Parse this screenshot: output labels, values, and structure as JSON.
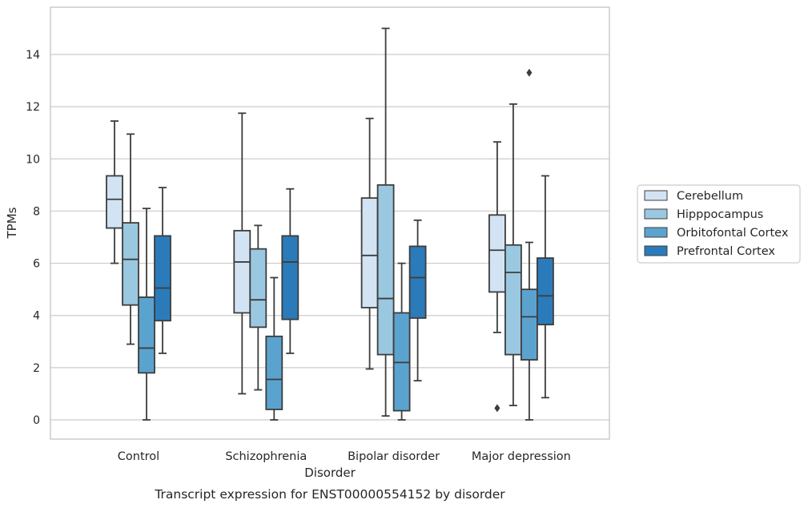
{
  "chart_data": {
    "type": "box",
    "title": "Transcript expression for ENST00000554152 by disorder",
    "xlabel": "Disorder",
    "ylabel": "TPMs",
    "categories": [
      "Control",
      "Schizophrenia",
      "Bipolar disorder",
      "Major depression"
    ],
    "ylim": [
      -0.7,
      15.5
    ],
    "yticks": [
      0,
      2,
      4,
      6,
      8,
      10,
      12,
      14
    ],
    "ytick_labels": [
      "0",
      "2",
      "4",
      "6",
      "8",
      "10",
      "12",
      "14"
    ],
    "grid": "horizontal",
    "legend_position": "right",
    "series": [
      {
        "name": "Cerebellum",
        "color": "#d2e3f3",
        "boxes": [
          {
            "whisker_low": 6.0,
            "q1": 7.35,
            "median": 8.45,
            "q3": 9.35,
            "whisker_high": 11.45,
            "outliers": []
          },
          {
            "whisker_low": 1.0,
            "q1": 4.1,
            "median": 6.05,
            "q3": 7.25,
            "whisker_high": 11.75,
            "outliers": []
          },
          {
            "whisker_low": 1.95,
            "q1": 4.3,
            "median": 6.3,
            "q3": 8.5,
            "whisker_high": 11.55,
            "outliers": []
          },
          {
            "whisker_low": 3.35,
            "q1": 4.9,
            "median": 6.5,
            "q3": 7.85,
            "whisker_high": 10.65,
            "outliers": [
              0.45
            ]
          }
        ]
      },
      {
        "name": "Hipppocampus",
        "color": "#9ac8e0",
        "boxes": [
          {
            "whisker_low": 2.9,
            "q1": 4.4,
            "median": 6.15,
            "q3": 7.55,
            "whisker_high": 10.95,
            "outliers": []
          },
          {
            "whisker_low": 1.15,
            "q1": 3.55,
            "median": 4.6,
            "q3": 6.55,
            "whisker_high": 7.45,
            "outliers": []
          },
          {
            "whisker_low": 0.15,
            "q1": 2.5,
            "median": 4.65,
            "q3": 9.0,
            "whisker_high": 15.0,
            "outliers": []
          },
          {
            "whisker_low": 0.55,
            "q1": 2.5,
            "median": 5.65,
            "q3": 6.7,
            "whisker_high": 12.1,
            "outliers": []
          }
        ]
      },
      {
        "name": "Orbitofontal Cortex",
        "color": "#5ba3cf",
        "boxes": [
          {
            "whisker_low": 0.0,
            "q1": 1.8,
            "median": 2.75,
            "q3": 4.7,
            "whisker_high": 8.1,
            "outliers": []
          },
          {
            "whisker_low": 0.0,
            "q1": 0.4,
            "median": 1.55,
            "q3": 3.2,
            "whisker_high": 5.45,
            "outliers": []
          },
          {
            "whisker_low": 0.0,
            "q1": 0.35,
            "median": 2.2,
            "q3": 4.1,
            "whisker_high": 6.0,
            "outliers": []
          },
          {
            "whisker_low": 0.0,
            "q1": 2.3,
            "median": 3.95,
            "q3": 5.0,
            "whisker_high": 6.8,
            "outliers": [
              13.3
            ]
          }
        ]
      },
      {
        "name": "Prefrontal Cortex",
        "color": "#2b7bba",
        "boxes": [
          {
            "whisker_low": 2.55,
            "q1": 3.8,
            "median": 5.05,
            "q3": 7.05,
            "whisker_high": 8.9,
            "outliers": []
          },
          {
            "whisker_low": 2.55,
            "q1": 3.85,
            "median": 6.05,
            "q3": 7.05,
            "whisker_high": 8.85,
            "outliers": []
          },
          {
            "whisker_low": 1.5,
            "q1": 3.9,
            "median": 5.45,
            "q3": 6.65,
            "whisker_high": 7.65,
            "outliers": []
          },
          {
            "whisker_low": 0.85,
            "q1": 3.65,
            "median": 4.75,
            "q3": 6.2,
            "whisker_high": 9.35,
            "outliers": []
          }
        ]
      }
    ]
  }
}
